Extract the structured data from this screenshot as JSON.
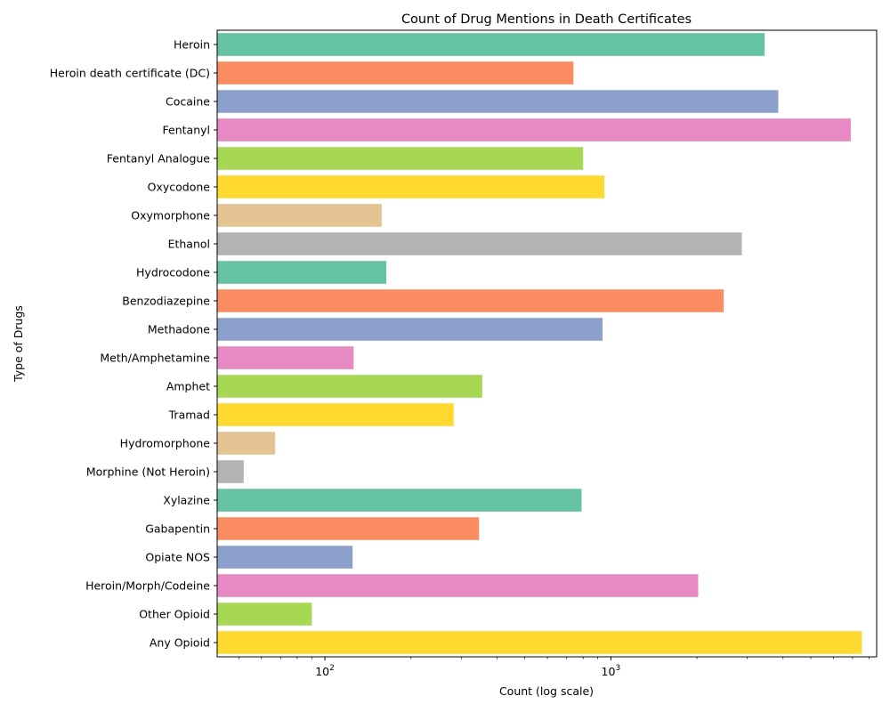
{
  "chart_data": {
    "type": "bar",
    "orientation": "horizontal",
    "title": "Count of Drug Mentions in Death Certificates",
    "xlabel": "Count (log scale)",
    "ylabel": "Type of Drugs",
    "xscale": "log",
    "xlim": [
      42,
      8500
    ],
    "x_tick_labels": [
      {
        "value": 100,
        "base": "10",
        "exp": "2"
      },
      {
        "value": 1000,
        "base": "10",
        "exp": "3"
      }
    ],
    "grid": false,
    "categories": [
      "Heroin",
      "Heroin death certificate (DC)",
      "Cocaine",
      "Fentanyl",
      "Fentanyl Analogue",
      "Oxycodone",
      "Oxymorphone",
      "Ethanol",
      "Hydrocodone",
      "Benzodiazepine",
      "Methadone",
      "Meth/Amphetamine",
      "Amphet",
      "Tramad",
      "Hydromorphone",
      "Morphine (Not Heroin)",
      "Xylazine",
      "Gabapentin",
      "Opiate NOS",
      "Heroin/Morph/Codeine",
      "Other Opioid",
      "Any Opioid"
    ],
    "values": [
      3450,
      740,
      3850,
      6900,
      800,
      950,
      158,
      2870,
      164,
      2480,
      935,
      126,
      355,
      282,
      67,
      52,
      790,
      346,
      125,
      2020,
      90,
      7550
    ],
    "colors": [
      "#66c2a5",
      "#fc8d62",
      "#8da0cb",
      "#e78ac3",
      "#a6d854",
      "#ffd92f",
      "#e5c494",
      "#b3b3b3",
      "#66c2a5",
      "#fc8d62",
      "#8da0cb",
      "#e78ac3",
      "#a6d854",
      "#ffd92f",
      "#e5c494",
      "#b3b3b3",
      "#66c2a5",
      "#fc8d62",
      "#8da0cb",
      "#e78ac3",
      "#a6d854",
      "#ffd92f"
    ]
  }
}
